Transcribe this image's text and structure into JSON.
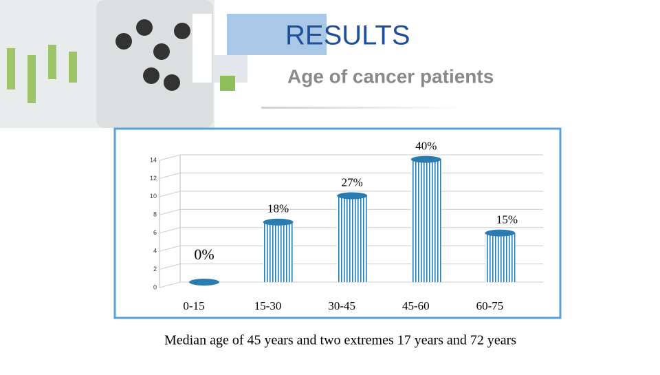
{
  "title": "RESULTS",
  "subtitle": "Age of cancer patients",
  "chart_data": {
    "type": "bar",
    "categories": [
      "0-15",
      "15-30",
      "30-45",
      "45-60",
      "60-75"
    ],
    "values": [
      0,
      6.6,
      9.5,
      13.5,
      5.4
    ],
    "annotations": [
      "0%",
      "18%",
      "27%",
      "40%",
      "15%"
    ],
    "color": "#2a7bb0",
    "ylim": [
      0,
      14
    ],
    "yticks": [
      0,
      2,
      4,
      6,
      8,
      10,
      12,
      14
    ],
    "grid": true
  },
  "caption": "Median age of 45 years  and two extremes 17 years and 72 years"
}
